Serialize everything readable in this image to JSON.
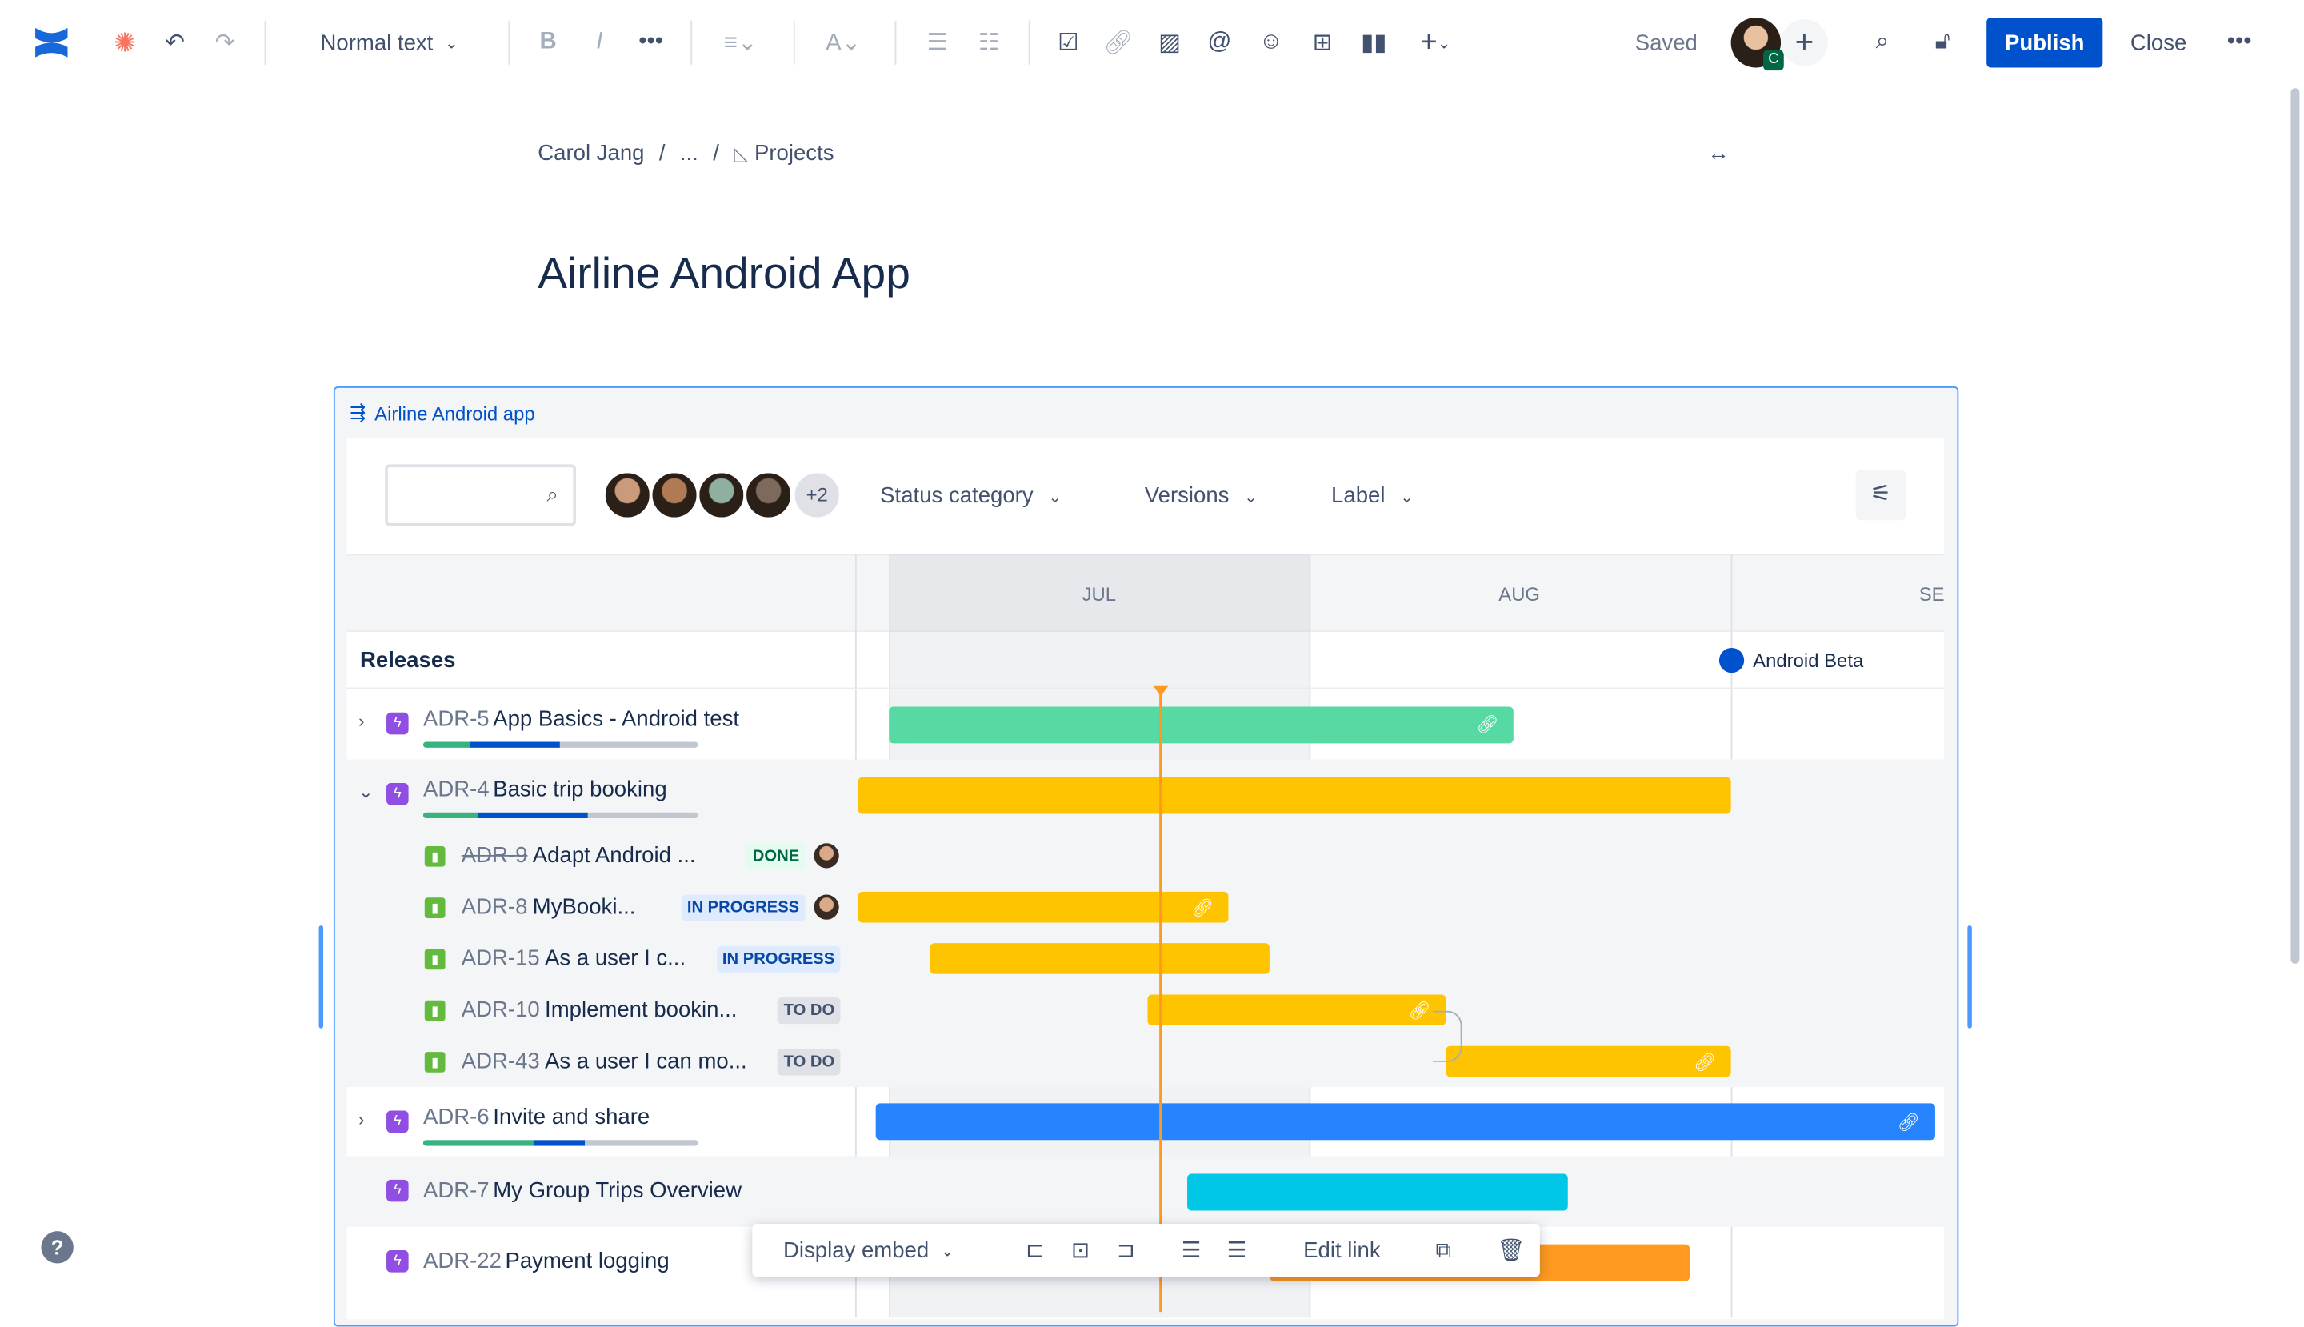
{
  "toolbar": {
    "text_style": "Normal text",
    "saved": "Saved",
    "avatar_badge": "C",
    "publish": "Publish",
    "close": "Close"
  },
  "breadcrumb": [
    "Carol Jang",
    "...",
    "Projects"
  ],
  "page_title": "Airline Android App",
  "embed": {
    "title": "Airline Android app",
    "more_avatars": "+2",
    "filters": [
      "Status category",
      "Versions",
      "Label"
    ],
    "months": [
      "JUL",
      "AUG",
      "SEP"
    ],
    "releases_label": "Releases",
    "release": {
      "name": "Android Beta",
      "date": "09-01",
      "color": "#0052cc"
    },
    "today": "07-21"
  },
  "rows": [
    {
      "type": "epic",
      "key": "ADR-5",
      "title": "App Basics - Android test",
      "expand": "collapsed",
      "progress": {
        "done": 17,
        "in_progress": 33
      },
      "bar": {
        "start": "07-01",
        "end": "08-16",
        "color": "#57d9a3",
        "link": true
      }
    },
    {
      "type": "epic",
      "key": "ADR-4",
      "title": "Basic trip booking",
      "expand": "expanded",
      "progress": {
        "done": 20,
        "in_progress": 40
      },
      "bar": {
        "start": "06-28",
        "end": "09-01",
        "color": "#ffc400",
        "link": false
      }
    },
    {
      "type": "story",
      "key": "ADR-9",
      "title": "Adapt Android ...",
      "status": "DONE",
      "strike": true,
      "avatar": true,
      "bar": null
    },
    {
      "type": "story",
      "key": "ADR-8",
      "title": "MyBooki...",
      "status": "IN PROGRESS",
      "avatar": true,
      "bar": {
        "start": "06-28",
        "end": "07-26",
        "color": "#ffc400",
        "link": true
      }
    },
    {
      "type": "story",
      "key": "ADR-15",
      "title": "As a user I c...",
      "status": "IN PROGRESS",
      "bar": {
        "start": "07-04",
        "end": "07-29",
        "color": "#ffc400",
        "link": false
      }
    },
    {
      "type": "story",
      "key": "ADR-10",
      "title": "Implement bookin...",
      "status": "TO DO",
      "bar": {
        "start": "07-20",
        "end": "08-11",
        "color": "#ffc400",
        "link": true
      }
    },
    {
      "type": "story",
      "key": "ADR-43",
      "title": "As a user I can mo...",
      "status": "TO DO",
      "bar": {
        "start": "08-11",
        "end": "09-01",
        "color": "#ffc400",
        "link": true
      }
    },
    {
      "type": "epic",
      "key": "ADR-6",
      "title": "Invite and share",
      "expand": "collapsed",
      "progress": {
        "done": 40,
        "in_progress": 19
      },
      "bar": {
        "start": "06-30",
        "end": "09-16",
        "color": "#2684ff",
        "link": true
      }
    },
    {
      "type": "epic",
      "key": "ADR-7",
      "title": "My Group Trips Overview",
      "bar": {
        "start": "07-23",
        "end": "08-20",
        "color": "#00c7e6",
        "link": false
      }
    },
    {
      "type": "epic",
      "key": "ADR-22",
      "title": "Payment logging",
      "bar": {
        "start": "07-29",
        "end": "08-29",
        "color": "#ff991f",
        "link": false
      }
    }
  ],
  "floating_toolbar": {
    "display": "Display embed",
    "edit_link": "Edit link"
  },
  "status_colors": {
    "DONE": [
      "#e3fcef",
      "#006644"
    ],
    "IN PROGRESS": [
      "#deebff",
      "#0747a6"
    ],
    "TO DO": [
      "#dfe1e6",
      "#42526e"
    ]
  }
}
